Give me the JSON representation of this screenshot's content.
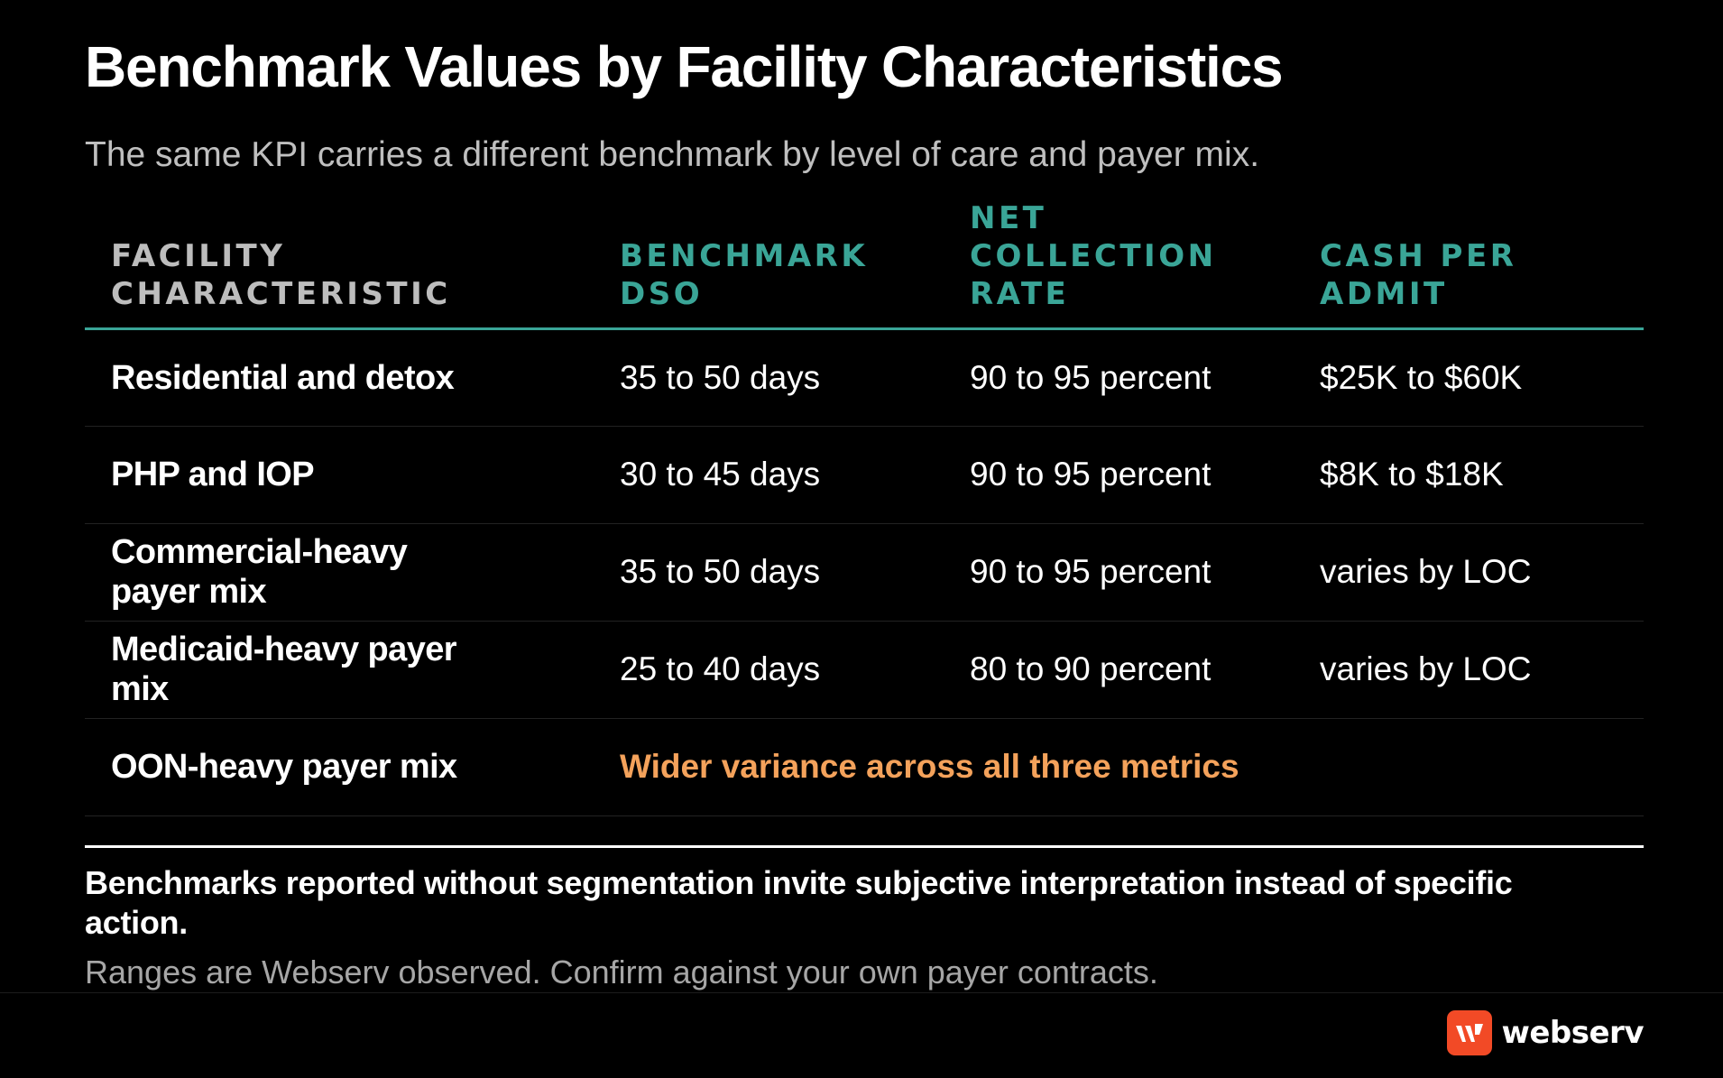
{
  "header": {
    "title": "Benchmark Values by Facility Characteristics",
    "subtitle": "The same KPI carries a different benchmark by level of care and payer mix."
  },
  "table": {
    "columns": [
      "Facility characteristic",
      "Benchmark DSO",
      "Net collection rate",
      "Cash per admit"
    ],
    "rows": [
      {
        "facility": "Residential and detox",
        "dso": "35 to 50 days",
        "ncr": "90 to 95 percent",
        "cash": "$25K to $60K"
      },
      {
        "facility": "PHP and IOP",
        "dso": "30 to 45 days",
        "ncr": "90 to 95 percent",
        "cash": "$8K to $18K"
      },
      {
        "facility": "Commercial-heavy payer mix",
        "dso": "35 to 50 days",
        "ncr": "90 to 95 percent",
        "cash": "varies by LOC"
      },
      {
        "facility": "Medicaid-heavy payer mix",
        "dso": "25 to 40 days",
        "ncr": "80 to 90 percent",
        "cash": "varies by LOC"
      },
      {
        "facility": "OON-heavy payer mix",
        "note": "Wider variance across all three metrics"
      }
    ]
  },
  "footer": {
    "footnote": "Benchmarks reported without segmentation invite subjective interpretation instead of specific action.",
    "source": "Ranges are Webserv observed. Confirm against your own payer contracts."
  },
  "brand": {
    "name": "webserv",
    "icon": "webserv-logo-icon",
    "color": "#f24a26"
  },
  "colors": {
    "background": "#000000",
    "accent_teal": "#3aa597",
    "accent_orange": "#f4a25b",
    "muted_text": "#bfbfbf"
  }
}
